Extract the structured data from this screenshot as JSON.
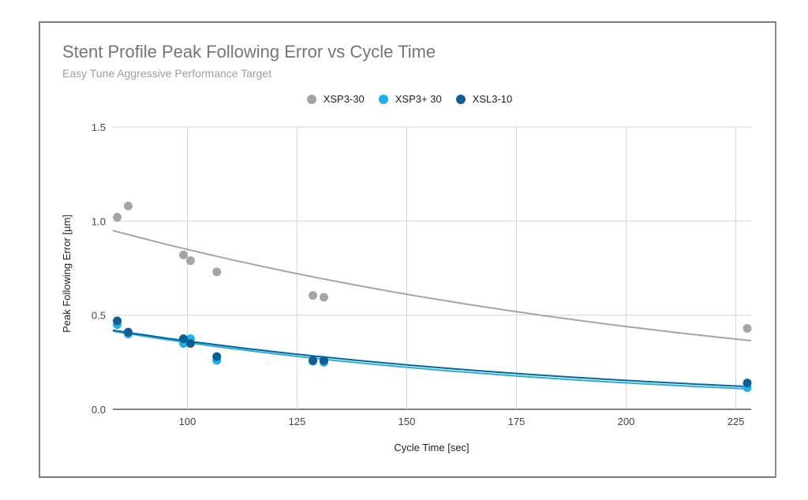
{
  "chart_data": {
    "type": "scatter",
    "title": "Stent Profile Peak Following Error vs Cycle Time",
    "subtitle": "Easy Tune Aggressive Performance Target",
    "xlabel": "Cycle Time [sec]",
    "ylabel": "Peak Following Error [µm]",
    "xlim": [
      83,
      228.5
    ],
    "ylim": [
      0,
      1.5
    ],
    "xticks": [
      100,
      125,
      150,
      175,
      200,
      225
    ],
    "yticks": [
      0.0,
      0.5,
      1.0,
      1.5
    ],
    "ytick_labels": [
      "0.0",
      "0.5",
      "1.0",
      "1.5"
    ],
    "grid": true,
    "legend_position": "top-center",
    "series": [
      {
        "name": "XSP3-30",
        "color": "#a5a5a5",
        "points": [
          [
            84,
            1.02
          ],
          [
            86.5,
            1.08
          ],
          [
            99.1,
            0.82
          ],
          [
            100.7,
            0.79
          ],
          [
            106.7,
            0.73
          ],
          [
            128.6,
            0.605
          ],
          [
            131.1,
            0.595
          ],
          [
            227.6,
            0.43
          ]
        ],
        "trendline": {
          "type": "exponential",
          "a": 0.95,
          "k": -0.00658,
          "x0": 83
        }
      },
      {
        "name": "XSP3+ 30",
        "color": "#1ab2ec",
        "points": [
          [
            84,
            0.45
          ],
          [
            86.5,
            0.4
          ],
          [
            99.1,
            0.35
          ],
          [
            100.7,
            0.375
          ],
          [
            106.7,
            0.26
          ],
          [
            128.6,
            0.255
          ],
          [
            131.1,
            0.25
          ],
          [
            227.6,
            0.115
          ]
        ],
        "trendline": {
          "type": "exponential",
          "a": 0.415,
          "k": -0.00925,
          "x0": 83
        }
      },
      {
        "name": "XSL3-10",
        "color": "#0f5f94",
        "points": [
          [
            84,
            0.47
          ],
          [
            86.5,
            0.41
          ],
          [
            99.1,
            0.375
          ],
          [
            100.7,
            0.35
          ],
          [
            106.7,
            0.28
          ],
          [
            128.6,
            0.26
          ],
          [
            131.1,
            0.26
          ],
          [
            227.6,
            0.14
          ]
        ],
        "trendline": {
          "type": "exponential",
          "a": 0.42,
          "k": -0.0086,
          "x0": 83
        }
      }
    ]
  }
}
